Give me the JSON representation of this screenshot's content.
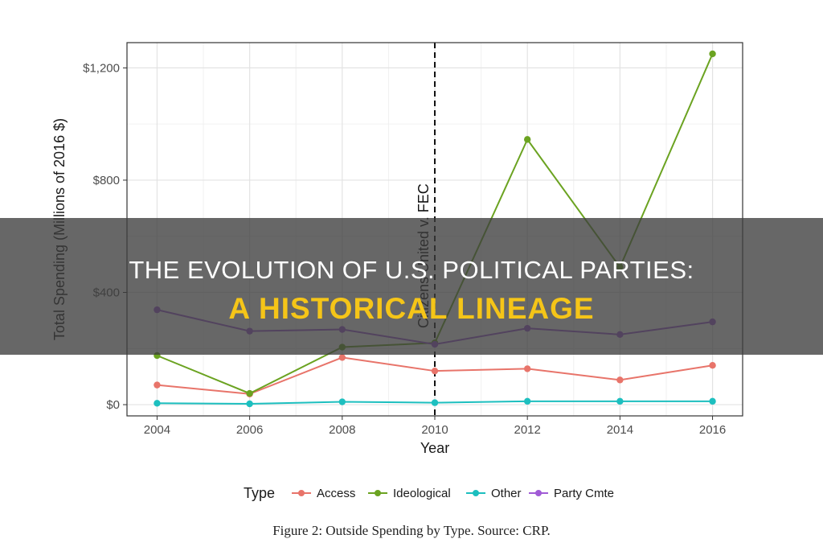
{
  "chart_data": {
    "type": "line",
    "xlabel": "Year",
    "ylabel": "Total Spending (Millions of 2016 $)",
    "x": [
      2004,
      2006,
      2008,
      2010,
      2012,
      2014,
      2016
    ],
    "xticks": [
      "2004",
      "2006",
      "2008",
      "2010",
      "2012",
      "2014",
      "2016"
    ],
    "ylim": [
      -40,
      1290
    ],
    "yticks": [
      {
        "value": 0,
        "label": "$0"
      },
      {
        "value": 400,
        "label": "$400"
      },
      {
        "value": 800,
        "label": "$800"
      },
      {
        "value": 1200,
        "label": "$1,200"
      }
    ],
    "grid": true,
    "legend_position": "bottom",
    "legend_title": "Type",
    "series": [
      {
        "name": "Access",
        "color": "#e8746a",
        "values": [
          70,
          38,
          168,
          120,
          128,
          88,
          140
        ]
      },
      {
        "name": "Ideological",
        "color": "#6ba321",
        "values": [
          175,
          40,
          205,
          220,
          945,
          490,
          1250
        ]
      },
      {
        "name": "Other",
        "color": "#1dbfbf",
        "values": [
          5,
          3,
          10,
          7,
          12,
          12,
          12
        ]
      },
      {
        "name": "Party Cmte",
        "color": "#a05bd6",
        "values": [
          338,
          262,
          268,
          215,
          272,
          250,
          295
        ]
      }
    ],
    "annotation": {
      "x": 2010,
      "text": "Citizens United v. FEC"
    }
  },
  "caption": "Figure 2:  Outside Spending by Type.  Source:  CRP.",
  "banner": {
    "title_line1": "THE EVOLUTION OF U.S. POLITICAL PARTIES:",
    "title_line2": "A HISTORICAL LINEAGE"
  }
}
